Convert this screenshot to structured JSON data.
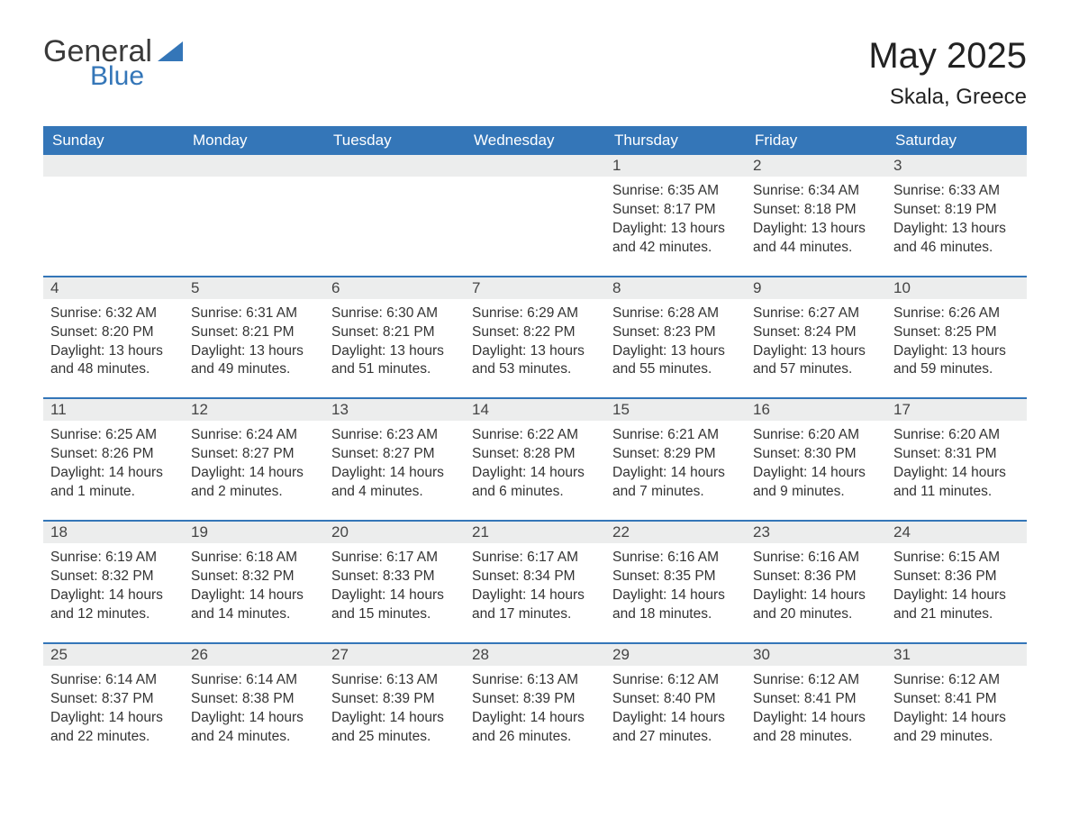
{
  "brand": {
    "main": "General",
    "sub": "Blue"
  },
  "title": {
    "month": "May 2025",
    "location": "Skala, Greece"
  },
  "colors": {
    "header_bg": "#3476b8",
    "header_fg": "#ffffff",
    "band_bg": "#eceded",
    "band_border": "#3476b8",
    "text": "#333333",
    "title_text": "#222222",
    "brand_sub": "#3476b8",
    "page_bg": "#ffffff"
  },
  "typography": {
    "title_fontsize_pt": 30,
    "location_fontsize_pt": 18,
    "dow_fontsize_pt": 13,
    "daynum_fontsize_pt": 13,
    "body_fontsize_pt": 12,
    "font_family": "Arial"
  },
  "layout": {
    "columns": 7,
    "week_rows": 5,
    "first_day_column_index": 4
  },
  "days_of_week": [
    "Sunday",
    "Monday",
    "Tuesday",
    "Wednesday",
    "Thursday",
    "Friday",
    "Saturday"
  ],
  "weeks": [
    [
      {
        "blank": true
      },
      {
        "blank": true
      },
      {
        "blank": true
      },
      {
        "blank": true
      },
      {
        "n": "1",
        "sunrise": "Sunrise: 6:35 AM",
        "sunset": "Sunset: 8:17 PM",
        "dl1": "Daylight: 13 hours",
        "dl2": "and 42 minutes."
      },
      {
        "n": "2",
        "sunrise": "Sunrise: 6:34 AM",
        "sunset": "Sunset: 8:18 PM",
        "dl1": "Daylight: 13 hours",
        "dl2": "and 44 minutes."
      },
      {
        "n": "3",
        "sunrise": "Sunrise: 6:33 AM",
        "sunset": "Sunset: 8:19 PM",
        "dl1": "Daylight: 13 hours",
        "dl2": "and 46 minutes."
      }
    ],
    [
      {
        "n": "4",
        "sunrise": "Sunrise: 6:32 AM",
        "sunset": "Sunset: 8:20 PM",
        "dl1": "Daylight: 13 hours",
        "dl2": "and 48 minutes."
      },
      {
        "n": "5",
        "sunrise": "Sunrise: 6:31 AM",
        "sunset": "Sunset: 8:21 PM",
        "dl1": "Daylight: 13 hours",
        "dl2": "and 49 minutes."
      },
      {
        "n": "6",
        "sunrise": "Sunrise: 6:30 AM",
        "sunset": "Sunset: 8:21 PM",
        "dl1": "Daylight: 13 hours",
        "dl2": "and 51 minutes."
      },
      {
        "n": "7",
        "sunrise": "Sunrise: 6:29 AM",
        "sunset": "Sunset: 8:22 PM",
        "dl1": "Daylight: 13 hours",
        "dl2": "and 53 minutes."
      },
      {
        "n": "8",
        "sunrise": "Sunrise: 6:28 AM",
        "sunset": "Sunset: 8:23 PM",
        "dl1": "Daylight: 13 hours",
        "dl2": "and 55 minutes."
      },
      {
        "n": "9",
        "sunrise": "Sunrise: 6:27 AM",
        "sunset": "Sunset: 8:24 PM",
        "dl1": "Daylight: 13 hours",
        "dl2": "and 57 minutes."
      },
      {
        "n": "10",
        "sunrise": "Sunrise: 6:26 AM",
        "sunset": "Sunset: 8:25 PM",
        "dl1": "Daylight: 13 hours",
        "dl2": "and 59 minutes."
      }
    ],
    [
      {
        "n": "11",
        "sunrise": "Sunrise: 6:25 AM",
        "sunset": "Sunset: 8:26 PM",
        "dl1": "Daylight: 14 hours",
        "dl2": "and 1 minute."
      },
      {
        "n": "12",
        "sunrise": "Sunrise: 6:24 AM",
        "sunset": "Sunset: 8:27 PM",
        "dl1": "Daylight: 14 hours",
        "dl2": "and 2 minutes."
      },
      {
        "n": "13",
        "sunrise": "Sunrise: 6:23 AM",
        "sunset": "Sunset: 8:27 PM",
        "dl1": "Daylight: 14 hours",
        "dl2": "and 4 minutes."
      },
      {
        "n": "14",
        "sunrise": "Sunrise: 6:22 AM",
        "sunset": "Sunset: 8:28 PM",
        "dl1": "Daylight: 14 hours",
        "dl2": "and 6 minutes."
      },
      {
        "n": "15",
        "sunrise": "Sunrise: 6:21 AM",
        "sunset": "Sunset: 8:29 PM",
        "dl1": "Daylight: 14 hours",
        "dl2": "and 7 minutes."
      },
      {
        "n": "16",
        "sunrise": "Sunrise: 6:20 AM",
        "sunset": "Sunset: 8:30 PM",
        "dl1": "Daylight: 14 hours",
        "dl2": "and 9 minutes."
      },
      {
        "n": "17",
        "sunrise": "Sunrise: 6:20 AM",
        "sunset": "Sunset: 8:31 PM",
        "dl1": "Daylight: 14 hours",
        "dl2": "and 11 minutes."
      }
    ],
    [
      {
        "n": "18",
        "sunrise": "Sunrise: 6:19 AM",
        "sunset": "Sunset: 8:32 PM",
        "dl1": "Daylight: 14 hours",
        "dl2": "and 12 minutes."
      },
      {
        "n": "19",
        "sunrise": "Sunrise: 6:18 AM",
        "sunset": "Sunset: 8:32 PM",
        "dl1": "Daylight: 14 hours",
        "dl2": "and 14 minutes."
      },
      {
        "n": "20",
        "sunrise": "Sunrise: 6:17 AM",
        "sunset": "Sunset: 8:33 PM",
        "dl1": "Daylight: 14 hours",
        "dl2": "and 15 minutes."
      },
      {
        "n": "21",
        "sunrise": "Sunrise: 6:17 AM",
        "sunset": "Sunset: 8:34 PM",
        "dl1": "Daylight: 14 hours",
        "dl2": "and 17 minutes."
      },
      {
        "n": "22",
        "sunrise": "Sunrise: 6:16 AM",
        "sunset": "Sunset: 8:35 PM",
        "dl1": "Daylight: 14 hours",
        "dl2": "and 18 minutes."
      },
      {
        "n": "23",
        "sunrise": "Sunrise: 6:16 AM",
        "sunset": "Sunset: 8:36 PM",
        "dl1": "Daylight: 14 hours",
        "dl2": "and 20 minutes."
      },
      {
        "n": "24",
        "sunrise": "Sunrise: 6:15 AM",
        "sunset": "Sunset: 8:36 PM",
        "dl1": "Daylight: 14 hours",
        "dl2": "and 21 minutes."
      }
    ],
    [
      {
        "n": "25",
        "sunrise": "Sunrise: 6:14 AM",
        "sunset": "Sunset: 8:37 PM",
        "dl1": "Daylight: 14 hours",
        "dl2": "and 22 minutes."
      },
      {
        "n": "26",
        "sunrise": "Sunrise: 6:14 AM",
        "sunset": "Sunset: 8:38 PM",
        "dl1": "Daylight: 14 hours",
        "dl2": "and 24 minutes."
      },
      {
        "n": "27",
        "sunrise": "Sunrise: 6:13 AM",
        "sunset": "Sunset: 8:39 PM",
        "dl1": "Daylight: 14 hours",
        "dl2": "and 25 minutes."
      },
      {
        "n": "28",
        "sunrise": "Sunrise: 6:13 AM",
        "sunset": "Sunset: 8:39 PM",
        "dl1": "Daylight: 14 hours",
        "dl2": "and 26 minutes."
      },
      {
        "n": "29",
        "sunrise": "Sunrise: 6:12 AM",
        "sunset": "Sunset: 8:40 PM",
        "dl1": "Daylight: 14 hours",
        "dl2": "and 27 minutes."
      },
      {
        "n": "30",
        "sunrise": "Sunrise: 6:12 AM",
        "sunset": "Sunset: 8:41 PM",
        "dl1": "Daylight: 14 hours",
        "dl2": "and 28 minutes."
      },
      {
        "n": "31",
        "sunrise": "Sunrise: 6:12 AM",
        "sunset": "Sunset: 8:41 PM",
        "dl1": "Daylight: 14 hours",
        "dl2": "and 29 minutes."
      }
    ]
  ]
}
